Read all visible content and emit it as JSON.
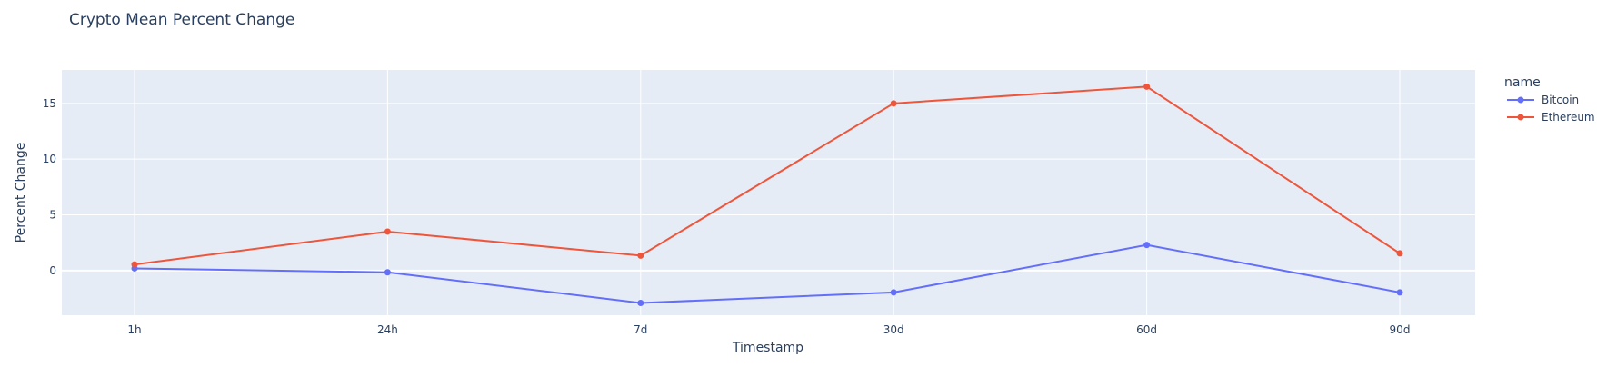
{
  "chart_data": {
    "type": "line",
    "title": "Crypto Mean Percent Change",
    "xlabel": "Timestamp",
    "ylabel": "Percent Change",
    "categories": [
      "1h",
      "24h",
      "7d",
      "30d",
      "60d",
      "90d"
    ],
    "ylim": [
      -4,
      18
    ],
    "yticks": [
      0,
      5,
      10,
      15
    ],
    "grid": true,
    "legend": {
      "title": "name",
      "placement": "right"
    },
    "series": [
      {
        "name": "Bitcoin",
        "color": "#636efa",
        "values": [
          0.2,
          -0.15,
          -2.9,
          -1.95,
          2.3,
          -1.95
        ]
      },
      {
        "name": "Ethereum",
        "color": "#ef553b",
        "values": [
          0.55,
          3.5,
          1.35,
          15.0,
          16.5,
          1.55
        ]
      }
    ]
  }
}
